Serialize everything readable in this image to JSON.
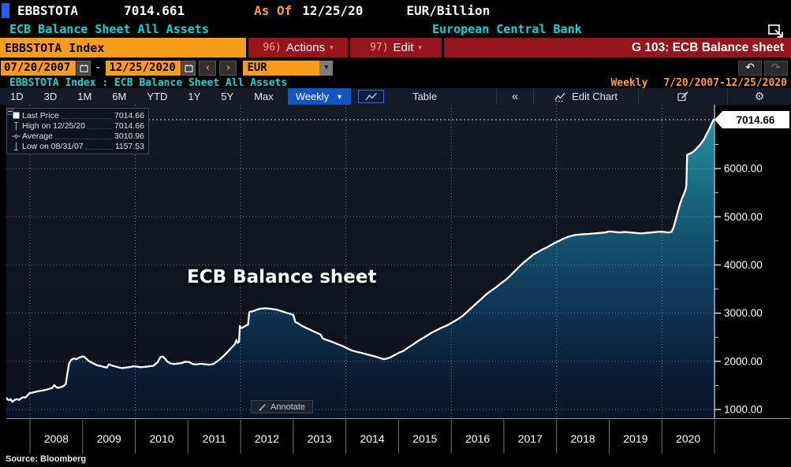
{
  "header": {
    "ticker": "EBBSTOTA",
    "last_value": "7014.661",
    "as_of_label": "As Of",
    "as_of_date": "12/25/20",
    "units": "EUR/Billion",
    "security_name": "ECB Balance Sheet All Assets",
    "issuer": "European Central Bank"
  },
  "command_bar": {
    "ticker_input": "EBBSTOTA Index",
    "actions_key": "96)",
    "actions_label": "Actions",
    "edit_key": "97)",
    "edit_label": "Edit",
    "panel_title": "G 103: ECB Balance sheet"
  },
  "range_bar": {
    "start_date": "07/20/2007",
    "separator": "-",
    "end_date": "12/25/2020",
    "currency": "EUR"
  },
  "subtitle_bar": {
    "breadcrumb": "EBBSTOTA Index : ECB Balance Sheet All Assets",
    "frequency": "Weekly",
    "range": "7/20/2007-12/25/2020"
  },
  "toolbar": {
    "ranges": [
      "1D",
      "3D",
      "1M",
      "6M",
      "YTD",
      "1Y",
      "5Y",
      "Max"
    ],
    "period_selected": "Weekly",
    "table_label": "Table",
    "collapse_label": "«",
    "edit_chart_label": "Edit Chart"
  },
  "legend": {
    "rows": [
      {
        "label": "Last Price",
        "value": "7014.66",
        "marker": "last-price"
      },
      {
        "label": "High on 12/25/20",
        "value": "7014.66",
        "marker": "high"
      },
      {
        "label": "Average",
        "value": "3010.96",
        "marker": "average"
      },
      {
        "label": "Low on 08/31/07",
        "value": "1157.53",
        "marker": "low"
      }
    ]
  },
  "chart_annotation": "ECB Balance sheet",
  "annotate_label": "Annotate",
  "source": "Source: Bloomberg",
  "colors": {
    "amber": "#ff9e27",
    "cyan": "#00d8e0",
    "orange": "#f99c19",
    "red": "#96151a",
    "blue": "#1256c4",
    "chart_line": "#ffffff",
    "fill_top": "#2a97a6",
    "fill_bottom": "#071225",
    "plot_bg_top": "#131a23",
    "plot_bg_bottom": "#0a111c"
  },
  "chart_data": {
    "type": "area",
    "title": "ECB Balance sheet",
    "x_unit": "decimal_year",
    "y_unit": "EUR billion",
    "frequency": "Weekly",
    "xlim": [
      2007.55,
      2021.0
    ],
    "ylim": [
      820,
      7330
    ],
    "last_price": 7014.66,
    "last_price_label": "7014.66",
    "high": {
      "date": "12/25/20",
      "value": 7014.66
    },
    "average": 3010.96,
    "low": {
      "date": "08/31/07",
      "value": 1157.53
    },
    "y_ticks": [
      {
        "value": 1000,
        "label": "1000.00"
      },
      {
        "value": 2000,
        "label": "2000.00"
      },
      {
        "value": 3000,
        "label": "3000.00"
      },
      {
        "value": 4000,
        "label": "4000.00"
      },
      {
        "value": 5000,
        "label": "5000.00"
      },
      {
        "value": 6000,
        "label": "6000.00"
      }
    ],
    "y_minor_ticks": [
      1500,
      2500,
      3500,
      4500,
      5500,
      6500
    ],
    "grid_years": [
      2008,
      2010,
      2012,
      2014,
      2016,
      2018,
      2020
    ],
    "x_years": [
      2008,
      2009,
      2010,
      2011,
      2012,
      2013,
      2014,
      2015,
      2016,
      2017,
      2018,
      2019,
      2020
    ],
    "series": [
      {
        "name": "EBBSTOTA Index",
        "points": [
          [
            2007.55,
            1240
          ],
          [
            2007.58,
            1205
          ],
          [
            2007.6,
            1195
          ],
          [
            2007.63,
            1215
          ],
          [
            2007.665,
            1157.53
          ],
          [
            2007.69,
            1185
          ],
          [
            2007.72,
            1205
          ],
          [
            2007.75,
            1215
          ],
          [
            2007.79,
            1200
          ],
          [
            2007.83,
            1230
          ],
          [
            2007.87,
            1255
          ],
          [
            2007.91,
            1245
          ],
          [
            2007.95,
            1290
          ],
          [
            2007.99,
            1340
          ],
          [
            2008.03,
            1345
          ],
          [
            2008.08,
            1360
          ],
          [
            2008.13,
            1375
          ],
          [
            2008.19,
            1385
          ],
          [
            2008.25,
            1395
          ],
          [
            2008.31,
            1410
          ],
          [
            2008.37,
            1430
          ],
          [
            2008.42,
            1445
          ],
          [
            2008.46,
            1505
          ],
          [
            2008.49,
            1470
          ],
          [
            2008.53,
            1450
          ],
          [
            2008.57,
            1460
          ],
          [
            2008.61,
            1475
          ],
          [
            2008.65,
            1495
          ],
          [
            2008.68,
            1530
          ],
          [
            2008.71,
            1740
          ],
          [
            2008.74,
            1950
          ],
          [
            2008.78,
            2030
          ],
          [
            2008.83,
            2060
          ],
          [
            2008.88,
            2045
          ],
          [
            2008.93,
            2075
          ],
          [
            2008.98,
            2095
          ],
          [
            2009.02,
            2100
          ],
          [
            2009.06,
            2065
          ],
          [
            2009.1,
            2020
          ],
          [
            2009.15,
            1985
          ],
          [
            2009.2,
            1960
          ],
          [
            2009.27,
            1920
          ],
          [
            2009.33,
            1905
          ],
          [
            2009.4,
            1885
          ],
          [
            2009.46,
            1870
          ],
          [
            2009.5,
            1940
          ],
          [
            2009.55,
            1915
          ],
          [
            2009.61,
            1895
          ],
          [
            2009.68,
            1875
          ],
          [
            2009.75,
            1860
          ],
          [
            2009.82,
            1870
          ],
          [
            2009.89,
            1880
          ],
          [
            2009.96,
            1895
          ],
          [
            2010.02,
            1890
          ],
          [
            2010.1,
            1880
          ],
          [
            2010.18,
            1885
          ],
          [
            2010.26,
            1895
          ],
          [
            2010.34,
            1905
          ],
          [
            2010.42,
            1975
          ],
          [
            2010.48,
            2090
          ],
          [
            2010.52,
            2100
          ],
          [
            2010.56,
            2060
          ],
          [
            2010.61,
            1995
          ],
          [
            2010.67,
            1955
          ],
          [
            2010.74,
            1945
          ],
          [
            2010.81,
            1955
          ],
          [
            2010.88,
            1965
          ],
          [
            2010.95,
            1990
          ],
          [
            2011.02,
            1985
          ],
          [
            2011.09,
            1945
          ],
          [
            2011.16,
            1935
          ],
          [
            2011.24,
            1950
          ],
          [
            2011.32,
            1940
          ],
          [
            2011.4,
            1930
          ],
          [
            2011.48,
            1945
          ],
          [
            2011.55,
            1995
          ],
          [
            2011.62,
            2055
          ],
          [
            2011.69,
            2125
          ],
          [
            2011.76,
            2205
          ],
          [
            2011.83,
            2290
          ],
          [
            2011.89,
            2355
          ],
          [
            2011.92,
            2445
          ],
          [
            2011.945,
            2385
          ],
          [
            2011.97,
            2400
          ],
          [
            2011.985,
            2735
          ],
          [
            2012.02,
            2690
          ],
          [
            2012.06,
            2715
          ],
          [
            2012.1,
            2740
          ],
          [
            2012.14,
            2760
          ],
          [
            2012.165,
            3023
          ],
          [
            2012.21,
            3035
          ],
          [
            2012.27,
            3055
          ],
          [
            2012.33,
            3080
          ],
          [
            2012.4,
            3095
          ],
          [
            2012.47,
            3102
          ],
          [
            2012.53,
            3095
          ],
          [
            2012.6,
            3085
          ],
          [
            2012.67,
            3075
          ],
          [
            2012.74,
            3055
          ],
          [
            2012.81,
            3030
          ],
          [
            2012.88,
            3005
          ],
          [
            2012.95,
            2985
          ],
          [
            2013.0,
            2965
          ],
          [
            2013.04,
            2815
          ],
          [
            2013.09,
            2790
          ],
          [
            2013.15,
            2745
          ],
          [
            2013.22,
            2705
          ],
          [
            2013.3,
            2665
          ],
          [
            2013.38,
            2625
          ],
          [
            2013.46,
            2585
          ],
          [
            2013.52,
            2555
          ],
          [
            2013.56,
            2475
          ],
          [
            2013.63,
            2445
          ],
          [
            2013.71,
            2415
          ],
          [
            2013.79,
            2380
          ],
          [
            2013.87,
            2345
          ],
          [
            2013.95,
            2310
          ],
          [
            2014.02,
            2270
          ],
          [
            2014.1,
            2230
          ],
          [
            2014.18,
            2205
          ],
          [
            2014.27,
            2180
          ],
          [
            2014.36,
            2155
          ],
          [
            2014.45,
            2130
          ],
          [
            2014.54,
            2105
          ],
          [
            2014.63,
            2075
          ],
          [
            2014.72,
            2045
          ],
          [
            2014.79,
            2060
          ],
          [
            2014.86,
            2090
          ],
          [
            2014.93,
            2135
          ],
          [
            2015.0,
            2175
          ],
          [
            2015.09,
            2215
          ],
          [
            2015.18,
            2285
          ],
          [
            2015.27,
            2345
          ],
          [
            2015.36,
            2415
          ],
          [
            2015.45,
            2475
          ],
          [
            2015.54,
            2535
          ],
          [
            2015.63,
            2595
          ],
          [
            2015.72,
            2645
          ],
          [
            2015.81,
            2695
          ],
          [
            2015.9,
            2735
          ],
          [
            2015.97,
            2775
          ],
          [
            2016.05,
            2825
          ],
          [
            2016.14,
            2885
          ],
          [
            2016.23,
            2955
          ],
          [
            2016.32,
            3045
          ],
          [
            2016.41,
            3135
          ],
          [
            2016.5,
            3225
          ],
          [
            2016.59,
            3315
          ],
          [
            2016.68,
            3405
          ],
          [
            2016.77,
            3475
          ],
          [
            2016.86,
            3545
          ],
          [
            2016.95,
            3625
          ],
          [
            2017.03,
            3685
          ],
          [
            2017.12,
            3775
          ],
          [
            2017.21,
            3875
          ],
          [
            2017.3,
            3975
          ],
          [
            2017.39,
            4065
          ],
          [
            2017.48,
            4145
          ],
          [
            2017.56,
            4215
          ],
          [
            2017.64,
            4265
          ],
          [
            2017.72,
            4315
          ],
          [
            2017.8,
            4355
          ],
          [
            2017.88,
            4405
          ],
          [
            2017.96,
            4455
          ],
          [
            2018.04,
            4495
          ],
          [
            2018.13,
            4545
          ],
          [
            2018.22,
            4585
          ],
          [
            2018.32,
            4615
          ],
          [
            2018.42,
            4630
          ],
          [
            2018.52,
            4640
          ],
          [
            2018.62,
            4645
          ],
          [
            2018.72,
            4655
          ],
          [
            2018.82,
            4665
          ],
          [
            2018.92,
            4675
          ],
          [
            2019.0,
            4695
          ],
          [
            2019.1,
            4685
          ],
          [
            2019.2,
            4675
          ],
          [
            2019.3,
            4685
          ],
          [
            2019.4,
            4675
          ],
          [
            2019.5,
            4665
          ],
          [
            2019.6,
            4655
          ],
          [
            2019.7,
            4665
          ],
          [
            2019.8,
            4675
          ],
          [
            2019.9,
            4685
          ],
          [
            2019.97,
            4690
          ],
          [
            2020.05,
            4685
          ],
          [
            2020.12,
            4675
          ],
          [
            2020.18,
            4685
          ],
          [
            2020.22,
            4770
          ],
          [
            2020.26,
            4925
          ],
          [
            2020.3,
            5095
          ],
          [
            2020.34,
            5245
          ],
          [
            2020.38,
            5375
          ],
          [
            2020.42,
            5475
          ],
          [
            2020.45,
            5565
          ],
          [
            2020.465,
            5645
          ],
          [
            2020.48,
            6285
          ],
          [
            2020.52,
            6305
          ],
          [
            2020.56,
            6325
          ],
          [
            2020.6,
            6355
          ],
          [
            2020.64,
            6395
          ],
          [
            2020.68,
            6445
          ],
          [
            2020.72,
            6485
          ],
          [
            2020.76,
            6545
          ],
          [
            2020.8,
            6605
          ],
          [
            2020.84,
            6695
          ],
          [
            2020.88,
            6775
          ],
          [
            2020.91,
            6845
          ],
          [
            2020.94,
            6925
          ],
          [
            2020.965,
            6975
          ],
          [
            2020.985,
            7014.66
          ]
        ]
      }
    ]
  }
}
